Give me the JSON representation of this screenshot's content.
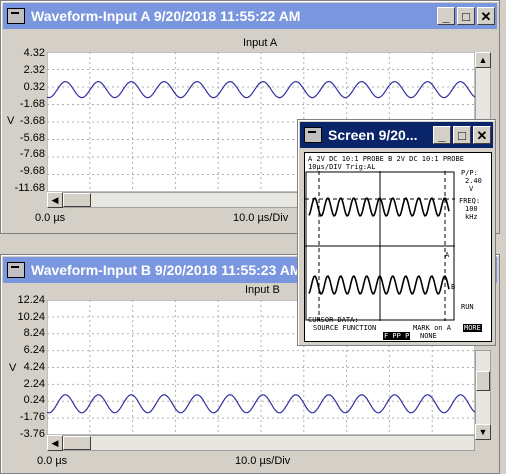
{
  "window_a": {
    "title": "Waveform-Input A  9/20/2018  11:55:22 AM",
    "plot_title": "Input A",
    "y_labels": [
      "4.32",
      "2.32",
      "0.32",
      "-1.68",
      "-3.68",
      "-5.68",
      "-7.68",
      "-9.68",
      "-11.68"
    ],
    "unit": "V",
    "time_start": "0.0 µs",
    "time_div": "10.0 µs/Div"
  },
  "window_b": {
    "title": "Waveform-Input B  9/20/2018  11:55:23 AM",
    "plot_title": "Input B",
    "y_labels": [
      "12.24",
      "10.24",
      "8.24",
      "6.24",
      "4.24",
      "2.24",
      "0.24",
      "-1.76",
      "-3.76"
    ],
    "unit": "V",
    "time_start": "0.0 µs",
    "time_div": "10.0 µs/Div"
  },
  "screen": {
    "title": "Screen    9/20...",
    "header_line1": "A   2V DC  10:1 PROBE  B   2V DC  10:1 PROBE",
    "header_line2": "10µs/DIV          Trig:AL",
    "pp_label": "P/P:",
    "pp_value": "2.40",
    "pp_unit": "V",
    "freq_label": "FREQ:",
    "freq_value": "100",
    "freq_unit": "kHz",
    "run": "RUN",
    "cursor_data": "CURSOR DATA:",
    "source_function": "SOURCE FUNCTION",
    "mark_on": "MARK on A",
    "f_pp": "F PP P",
    "none": "NONE",
    "more": "MORE",
    "marker_a": "A",
    "marker_b": "B"
  },
  "buttons": {
    "minimize": "_",
    "maximize": "□",
    "close": "✕"
  },
  "colors": {
    "trace": "#3030a0",
    "title_active": "#0a246a",
    "title_inactive": "#7a96df"
  }
}
